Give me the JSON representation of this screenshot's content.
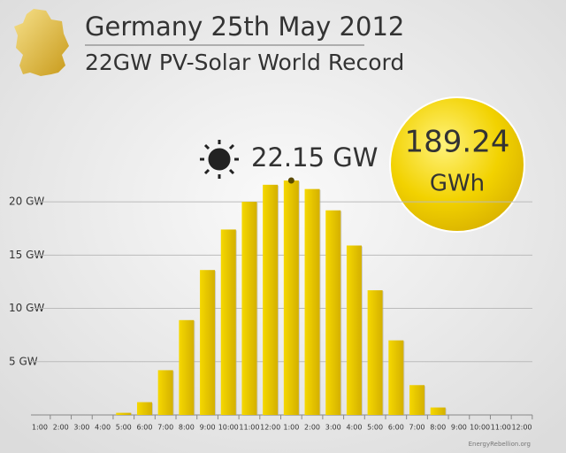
{
  "chart_data": {
    "type": "bar",
    "title": "Germany 25th May 2012",
    "subtitle": "22GW PV-Solar World Record",
    "annotation": "22.15 GW",
    "total": 189.24,
    "total_unit": "GWh",
    "source": "EnergyRebellion.org",
    "categories": [
      "1:00",
      "2:00",
      "3:00",
      "4:00",
      "5:00",
      "6:00",
      "7:00",
      "8:00",
      "9:00",
      "10:00",
      "11:00",
      "12:00",
      "1:00",
      "2:00",
      "3:00",
      "4:00",
      "5:00",
      "6:00",
      "7:00",
      "8:00",
      "9:00",
      "10:00",
      "11:00",
      "12:00"
    ],
    "values": [
      0,
      0,
      0,
      0,
      0.2,
      1.2,
      4.2,
      8.9,
      13.6,
      17.4,
      20.0,
      21.6,
      22.0,
      21.2,
      19.2,
      15.9,
      11.7,
      7.0,
      2.8,
      0.7,
      0,
      0,
      0,
      0
    ],
    "color": "#e6c200",
    "ylim": [
      0,
      22.5
    ],
    "yticks": [
      {
        "value": 5,
        "label": "5 GW"
      },
      {
        "value": 10,
        "label": "10 GW"
      },
      {
        "value": 15,
        "label": "15 GW"
      },
      {
        "value": 20,
        "label": "20 GW"
      }
    ],
    "grid": true
  }
}
